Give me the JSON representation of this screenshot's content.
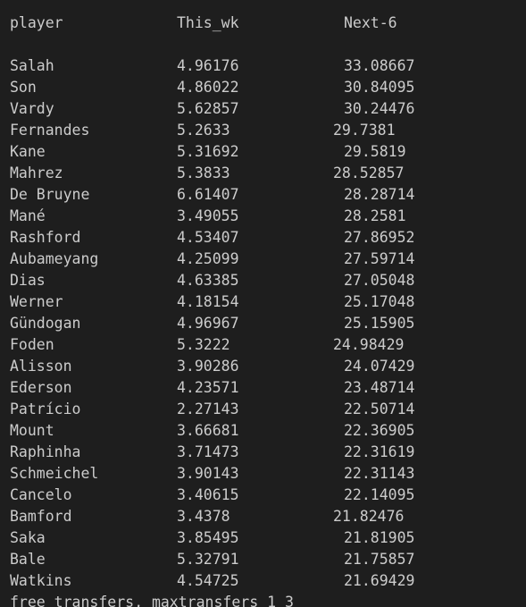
{
  "header": {
    "player": "player",
    "this_wk": "This_wk",
    "next_6": "Next-6"
  },
  "rows": [
    {
      "player": "Salah",
      "this_wk": "4.96176",
      "next_6": "33.08667"
    },
    {
      "player": "Son",
      "this_wk": "4.86022",
      "next_6": "30.84095"
    },
    {
      "player": "Vardy",
      "this_wk": "5.62857",
      "next_6": "30.24476"
    },
    {
      "player": "Fernandes",
      "this_wk": "5.2633",
      "next_6": "29.7381"
    },
    {
      "player": "Kane",
      "this_wk": "5.31692",
      "next_6": "29.5819"
    },
    {
      "player": "Mahrez",
      "this_wk": "5.3833",
      "next_6": "28.52857"
    },
    {
      "player": "De Bruyne",
      "this_wk": "6.61407",
      "next_6": "28.28714"
    },
    {
      "player": "Mané",
      "this_wk": "3.49055",
      "next_6": "28.2581"
    },
    {
      "player": "Rashford",
      "this_wk": "4.53407",
      "next_6": "27.86952"
    },
    {
      "player": "Aubameyang",
      "this_wk": "4.25099",
      "next_6": "27.59714"
    },
    {
      "player": "Dias",
      "this_wk": "4.63385",
      "next_6": "27.05048"
    },
    {
      "player": "Werner",
      "this_wk": "4.18154",
      "next_6": "25.17048"
    },
    {
      "player": "Gündogan",
      "this_wk": "4.96967",
      "next_6": "25.15905"
    },
    {
      "player": "Foden",
      "this_wk": "5.3222",
      "next_6": "24.98429"
    },
    {
      "player": "Alisson",
      "this_wk": "3.90286",
      "next_6": "24.07429"
    },
    {
      "player": "Ederson",
      "this_wk": "4.23571",
      "next_6": "23.48714"
    },
    {
      "player": "Patrício",
      "this_wk": "2.27143",
      "next_6": "22.50714"
    },
    {
      "player": "Mount",
      "this_wk": "3.66681",
      "next_6": "22.36905"
    },
    {
      "player": "Raphinha",
      "this_wk": "3.71473",
      "next_6": "22.31619"
    },
    {
      "player": "Schmeichel",
      "this_wk": "3.90143",
      "next_6": "22.31143"
    },
    {
      "player": "Cancelo",
      "this_wk": "3.40615",
      "next_6": "22.14095"
    },
    {
      "player": "Bamford",
      "this_wk": "3.4378",
      "next_6": "21.82476"
    },
    {
      "player": "Saka",
      "this_wk": "3.85495",
      "next_6": "21.81905"
    },
    {
      "player": "Bale",
      "this_wk": "5.32791",
      "next_6": "21.75857"
    },
    {
      "player": "Watkins",
      "this_wk": "4.54725",
      "next_6": "21.69429"
    }
  ],
  "footer": {
    "text": "free transfers, maxtransfers 1 3"
  },
  "colors": {
    "background": "#1e1e1e",
    "text": "#cccccc"
  }
}
